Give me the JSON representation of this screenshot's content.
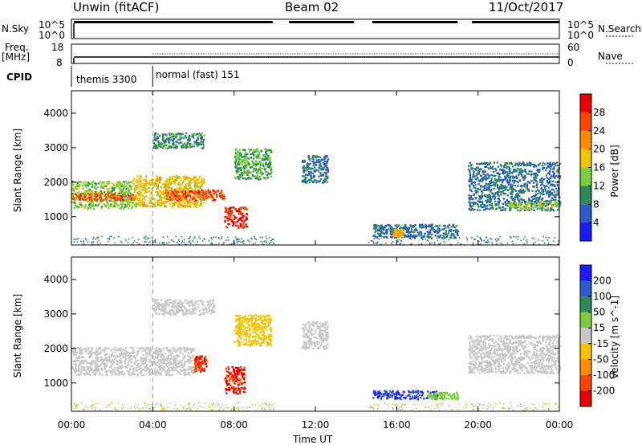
{
  "header": {
    "station": "Unwin (fitACF)",
    "beam": "Beam 02",
    "date": "11/Oct/2017"
  },
  "sky_panel": {
    "left_label": "N.Sky",
    "left_ticks": [
      "10^5",
      "10^0"
    ],
    "right_ticks": [
      "10^5",
      "10^0"
    ],
    "right_label": "N.Search"
  },
  "freq_panel": {
    "left_label_line1": "Freq.",
    "left_label_line2": "[MHz]",
    "left_ticks": [
      "18",
      "8"
    ],
    "right_ticks": [
      "60",
      "0"
    ],
    "right_label": "Nave"
  },
  "cpid_panel": {
    "label": "CPID",
    "modes": [
      {
        "name": "themis 3300",
        "start_hour": 0.0
      },
      {
        "name": "normal (fast) 151",
        "start_hour": 4.0
      }
    ]
  },
  "range_axis": {
    "label": "Slant Range [km]",
    "ticks": [
      1000,
      2000,
      3000,
      4000
    ],
    "ylim": [
      180,
      4650
    ]
  },
  "time_axis": {
    "label": "Time UT",
    "ticks": [
      "00:00",
      "04:00",
      "08:00",
      "12:00",
      "16:00",
      "20:00",
      "00:00"
    ],
    "xlim_hours": [
      0,
      24
    ]
  },
  "chart_data": [
    {
      "type": "heatmap",
      "quantity": "power",
      "colorbar": {
        "label": "Power [dB]",
        "ticks": [
          4,
          8,
          12,
          16,
          20,
          24,
          28
        ],
        "range": [
          0,
          32
        ],
        "colors": [
          "#1a1aff",
          "#2f58c8",
          "#2e8b57",
          "#7ccd3c",
          "#f2c400",
          "#ff8c00",
          "#ff4500",
          "#e60000"
        ]
      },
      "echo_regions": [
        {
          "t": [
            0.0,
            3.0
          ],
          "range_km": [
            1250,
            2050
          ],
          "value": 14
        },
        {
          "t": [
            0.0,
            3.0
          ],
          "range_km": [
            1500,
            1700
          ],
          "value": 26
        },
        {
          "t": [
            3.0,
            6.5
          ],
          "range_km": [
            1300,
            2200
          ],
          "value": 18
        },
        {
          "t": [
            4.5,
            7.5
          ],
          "range_km": [
            1500,
            1800
          ],
          "value": 26
        },
        {
          "t": [
            7.5,
            8.6
          ],
          "range_km": [
            700,
            1300
          ],
          "value": 28
        },
        {
          "t": [
            4.0,
            6.5
          ],
          "range_km": [
            3000,
            3450
          ],
          "value": 10
        },
        {
          "t": [
            8.0,
            9.8
          ],
          "range_km": [
            2100,
            3000
          ],
          "value": 12
        },
        {
          "t": [
            11.3,
            12.6
          ],
          "range_km": [
            2000,
            2800
          ],
          "value": 8
        },
        {
          "t": [
            14.8,
            19.0
          ],
          "range_km": [
            400,
            800
          ],
          "value": 8
        },
        {
          "t": [
            15.8,
            16.3
          ],
          "range_km": [
            450,
            650
          ],
          "value": 20
        },
        {
          "t": [
            19.5,
            24.0
          ],
          "range_km": [
            1200,
            2600
          ],
          "value": 8
        },
        {
          "t": [
            21.5,
            24.0
          ],
          "range_km": [
            1250,
            1450
          ],
          "value": 14
        }
      ]
    },
    {
      "type": "heatmap",
      "quantity": "velocity",
      "colorbar": {
        "label": "Velocity [m s^-1]",
        "ticks": [
          200,
          100,
          50,
          15,
          -15,
          -50,
          -100,
          -200
        ],
        "range": [
          -250,
          250
        ],
        "colors": [
          "#1a1aff",
          "#2f58c8",
          "#2e8b57",
          "#7ccd3c",
          "#c8c8c8",
          "#f2c400",
          "#ff8c00",
          "#ff4500",
          "#e60000"
        ]
      },
      "echo_regions": [
        {
          "t": [
            0.0,
            6.0
          ],
          "range_km": [
            1250,
            2050
          ],
          "value": 0
        },
        {
          "t": [
            6.0,
            6.6
          ],
          "range_km": [
            1350,
            1800
          ],
          "value": -200
        },
        {
          "t": [
            7.5,
            8.5
          ],
          "range_km": [
            700,
            1500
          ],
          "value": -200
        },
        {
          "t": [
            4.0,
            7.0
          ],
          "range_km": [
            3000,
            3450
          ],
          "value": 0
        },
        {
          "t": [
            8.0,
            9.8
          ],
          "range_km": [
            2100,
            3000
          ],
          "value": -40
        },
        {
          "t": [
            11.3,
            12.6
          ],
          "range_km": [
            2000,
            2800
          ],
          "value": 0
        },
        {
          "t": [
            14.8,
            18.0
          ],
          "range_km": [
            550,
            800
          ],
          "value": 200
        },
        {
          "t": [
            17.5,
            19.0
          ],
          "range_km": [
            550,
            750
          ],
          "value": 40
        },
        {
          "t": [
            19.5,
            24.0
          ],
          "range_km": [
            1300,
            2400
          ],
          "value": 0
        }
      ]
    }
  ]
}
